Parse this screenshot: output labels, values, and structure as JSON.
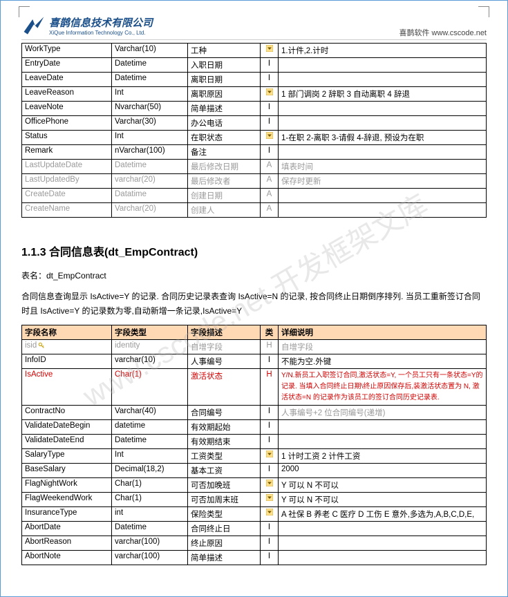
{
  "header": {
    "company_cn": "喜鹊信息技术有限公司",
    "company_en": "XiQue Information Technology Co., Ltd.",
    "right_text": "喜鹊软件 www.cscode.net"
  },
  "watermark": "www.cscode.net 开发框架文库",
  "table1": {
    "rows": [
      {
        "name": "WorkType",
        "type": "Varchar(10)",
        "desc": "工种",
        "cat": "",
        "dd": true,
        "detail": "1.计件,2.计时"
      },
      {
        "name": "EntryDate",
        "type": "Datetime",
        "desc": "入职日期",
        "cat": "I",
        "detail": ""
      },
      {
        "name": "LeaveDate",
        "type": "Datetime",
        "desc": "离职日期",
        "cat": "I",
        "detail": ""
      },
      {
        "name": "LeaveReason",
        "type": "Int",
        "desc": "离职原因",
        "cat": "",
        "dd": true,
        "detail": "1 部门调岗  2 辞职  3 自动离职  4 辞退"
      },
      {
        "name": "LeaveNote",
        "type": "Nvarchar(50)",
        "desc": "简单描述",
        "cat": "I",
        "detail": ""
      },
      {
        "name": "OfficePhone",
        "type": "Varchar(30)",
        "desc": "办公电话",
        "cat": "I",
        "detail": ""
      },
      {
        "name": "Status",
        "type": "Int",
        "desc": "在职状态",
        "cat": "",
        "dd": true,
        "detail": "1-在职  2-离职  3-请假  4-辞退, 预设为在职"
      },
      {
        "name": "Remark",
        "type": "nVarchar(100)",
        "desc": "备注",
        "cat": "I",
        "detail": ""
      },
      {
        "name": "LastUpdateDate",
        "type": "Datetime",
        "desc": "最后修改日期",
        "cat": "A",
        "detail": "填表时间",
        "gray": true
      },
      {
        "name": "LastUpdatedBy",
        "type": "varchar(20)",
        "desc": "最后修改者",
        "cat": "A",
        "detail": "保存时更新",
        "gray": true
      },
      {
        "name": "CreateDate",
        "type": "Datatime",
        "desc": "创建日期",
        "cat": "A",
        "detail": "",
        "gray": true
      },
      {
        "name": "CreateName",
        "type": "Varchar(20)",
        "desc": "创建人",
        "cat": "A",
        "detail": "",
        "gray": true
      }
    ]
  },
  "section": {
    "title": "1.1.3 合同信息表(dt_EmpContract)",
    "table_label": "表名：dt_EmpContract",
    "desc": "合同信息查询显示 IsActive=Y 的记录.  合同历史记录表查询 IsActive=N 的记录,  按合同终止日期倒序排列.  当员工重新签订合同时且 IsActive=Y 的记录数为零,自动新增一条记录,IsActive=Y"
  },
  "table2": {
    "headers": {
      "name": "字段名称",
      "type": "字段类型",
      "desc": "字段描述",
      "cat": "类",
      "detail": "详细说明"
    },
    "rows": [
      {
        "name": "isid",
        "type": "identity",
        "desc": "自增字段",
        "cat": "H",
        "detail": "自增字段",
        "gray": true,
        "key": true
      },
      {
        "name": "InfoID",
        "type": "varchar(10)",
        "desc": "人事编号",
        "cat": "I",
        "detail": "不能为空.外键"
      },
      {
        "name": "IsActive",
        "type": "Char(1)",
        "desc": "激活状态",
        "cat": "H",
        "detail": "Y/N.新员工入职签订合同,激活状态=Y,  一个员工只有一条状态=Y的记录.  当填入合同终止日期\\终止原因保存后,装激活状态置为 N,  激活状态=N 的记录作为该员工的签订合同历史记录表.",
        "red": true
      },
      {
        "name": "ContractNo",
        "type": "Varchar(40)",
        "desc": "合同编号",
        "cat": "I",
        "detail": "人事编号+2 位合同编号(递增)",
        "detail_gray": true
      },
      {
        "name": "ValidateDateBegin",
        "type": "datetime",
        "desc": "有效期起始",
        "cat": "I",
        "detail": ""
      },
      {
        "name": "ValidateDateEnd",
        "type": "Datetime",
        "desc": "有效期结束",
        "cat": "I",
        "detail": ""
      },
      {
        "name": "SalaryType",
        "type": "Int",
        "desc": "工资类型",
        "cat": "",
        "dd": true,
        "detail": "1 计时工资 2 计件工资"
      },
      {
        "name": "BaseSalary",
        "type": "Decimal(18,2)",
        "desc": "基本工资",
        "cat": "I",
        "detail": "2000"
      },
      {
        "name": "FlagNightWork",
        "type": "Char(1)",
        "desc": "可否加晚班",
        "cat": "",
        "dd": true,
        "detail": "Y 可以  N 不可以"
      },
      {
        "name": "FlagWeekendWork",
        "type": "Char(1)",
        "desc": "可否加周末班",
        "cat": "",
        "dd": true,
        "detail": "Y 可以  N 不可以"
      },
      {
        "name": "InsuranceType",
        "type": "int",
        "desc": "保险类型",
        "cat": "",
        "dd": true,
        "detail": "A 社保  B 养老  C 医疗  D 工伤  E 意外,多选为,A,B,C,D,E,"
      },
      {
        "name": "AbortDate",
        "type": "Datetime",
        "desc": "合同终止日",
        "cat": "I",
        "detail": ""
      },
      {
        "name": "AbortReason",
        "type": "varchar(100)",
        "desc": "终止原因",
        "cat": "I",
        "detail": ""
      },
      {
        "name": "AbortNote",
        "type": "varchar(100)",
        "desc": "简单描述",
        "cat": "I",
        "detail": ""
      }
    ]
  },
  "colors": {
    "header_bg": "#ffd9b3",
    "border": "#000000",
    "page_border": "#5b9bd5",
    "gray": "#9a9a9a",
    "red": "#d00000",
    "logo": "#1a4f8a",
    "dd_bg": "#ffe08a",
    "dd_arrow": "#7a5c00"
  }
}
